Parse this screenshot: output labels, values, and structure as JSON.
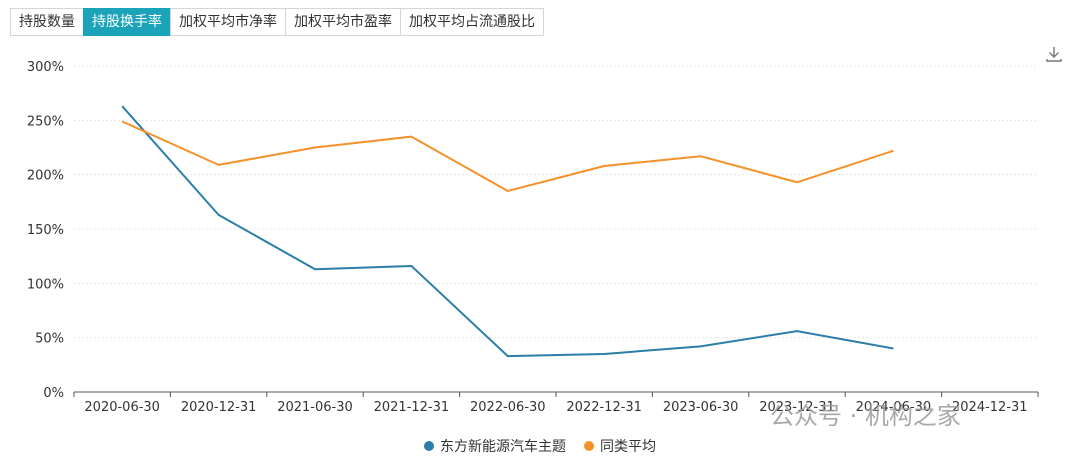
{
  "tabs": [
    {
      "label": "持股数量",
      "active": false
    },
    {
      "label": "持股换手率",
      "active": true
    },
    {
      "label": "加权平均市净率",
      "active": false
    },
    {
      "label": "加权平均市盈率",
      "active": false
    },
    {
      "label": "加权平均占流通股比",
      "active": false
    }
  ],
  "colors": {
    "accent": "#1aa3b9",
    "series1": "#2a7fa8",
    "series2": "#f5912a"
  },
  "watermark": "公众号 · 机构之家",
  "chart_data": {
    "type": "line",
    "categories": [
      "2020-06-30",
      "2020-12-31",
      "2021-06-30",
      "2021-12-31",
      "2022-06-30",
      "2022-12-31",
      "2023-06-30",
      "2023-12-31",
      "2024-06-30",
      "2024-12-31"
    ],
    "yticks": [
      "0%",
      "50%",
      "100%",
      "150%",
      "200%",
      "250%",
      "300%"
    ],
    "ylim": [
      0,
      300
    ],
    "series": [
      {
        "name": "东方新能源汽车主题",
        "color": "#2a7fa8",
        "values": [
          263,
          163,
          113,
          116,
          33,
          35,
          42,
          56,
          40,
          null
        ]
      },
      {
        "name": "同类平均",
        "color": "#f5912a",
        "values": [
          249,
          209,
          225,
          235,
          185,
          208,
          217,
          193,
          222,
          null
        ]
      }
    ],
    "legend_position": "bottom",
    "grid": true
  }
}
